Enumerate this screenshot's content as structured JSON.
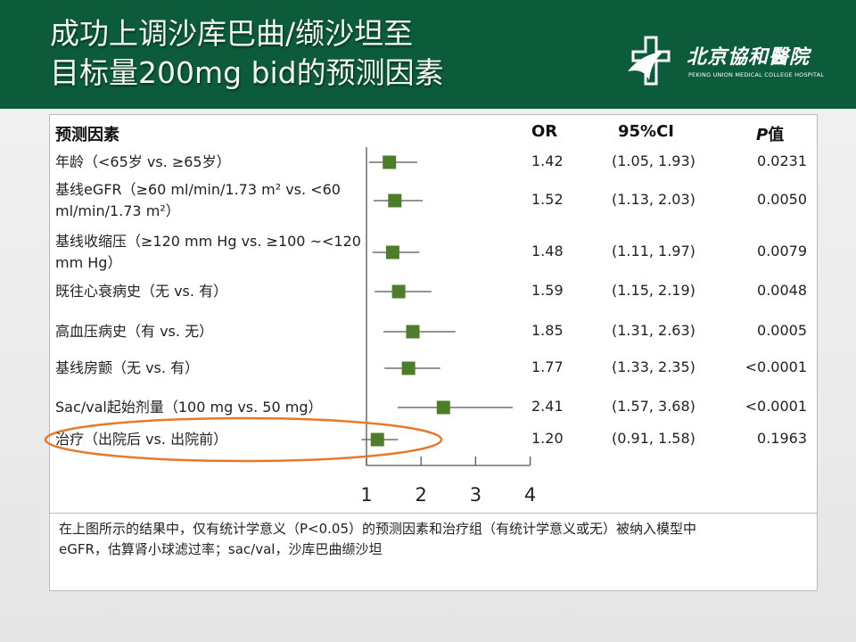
{
  "header": {
    "title_line1": "成功上调沙库巴曲/缬沙坦至",
    "title_line2": "目标量200mg bid的预测因素",
    "logo_cn": "北京協和醫院",
    "logo_en": "PEKING UNION MEDICAL COLLEGE HOSPITAL"
  },
  "chart_data": {
    "type": "forest",
    "columns": {
      "factor": "预测因素",
      "or": "OR",
      "ci": "95%CI",
      "p_italic": "P",
      "p_suffix": "值"
    },
    "rows": [
      {
        "label": "年龄（<65岁 vs. ≥65岁）",
        "or": 1.42,
        "lo": 1.05,
        "hi": 1.93,
        "or_text": "1.42",
        "ci_text": "(1.05, 1.93)",
        "p_text": "0.0231"
      },
      {
        "label": "基线eGFR（≥60 ml/min/1.73 m² vs. <60 ml/min/1.73 m²）",
        "or": 1.52,
        "lo": 1.13,
        "hi": 2.03,
        "or_text": "1.52",
        "ci_text": "(1.13, 2.03)",
        "p_text": "0.0050"
      },
      {
        "label": "基线收缩压（≥120 mm Hg vs. ≥100 ~<120 mm Hg）",
        "or": 1.48,
        "lo": 1.11,
        "hi": 1.97,
        "or_text": "1.48",
        "ci_text": "(1.11, 1.97)",
        "p_text": "0.0079"
      },
      {
        "label": "既往心衰病史（无 vs. 有）",
        "or": 1.59,
        "lo": 1.15,
        "hi": 2.19,
        "or_text": "1.59",
        "ci_text": "(1.15, 2.19)",
        "p_text": "0.0048"
      },
      {
        "label": "高血压病史（有 vs. 无）",
        "or": 1.85,
        "lo": 1.31,
        "hi": 2.63,
        "or_text": "1.85",
        "ci_text": "(1.31, 2.63)",
        "p_text": "0.0005"
      },
      {
        "label": "基线房颤（无 vs. 有）",
        "or": 1.77,
        "lo": 1.33,
        "hi": 2.35,
        "or_text": "1.77",
        "ci_text": "(1.33, 2.35)",
        "p_text": "<0.0001"
      },
      {
        "label": "Sac/val起始剂量（100 mg vs. 50 mg）",
        "or": 2.41,
        "lo": 1.57,
        "hi": 3.68,
        "or_text": "2.41",
        "ci_text": "(1.57, 3.68)",
        "p_text": "<0.0001"
      },
      {
        "label": "治疗（出院后 vs. 出院前）",
        "or": 1.2,
        "lo": 0.91,
        "hi": 1.58,
        "or_text": "1.20",
        "ci_text": "(0.91, 1.58)",
        "p_text": "0.1963",
        "highlighted": true
      }
    ],
    "xticks": [
      "1",
      "2",
      "3",
      "4"
    ],
    "xlim": [
      1,
      4
    ],
    "reference_line": 1,
    "marker_color": "#4e7d2a",
    "highlight_color": "#e8782a"
  },
  "footnote": {
    "line1": "在上图所示的结果中，仅有统计学意义（P<0.05）的预测因素和治疗组（有统计学意义或无）被纳入模型中",
    "line2": "eGFR，估算肾小球滤过率；sac/val，沙库巴曲缬沙坦"
  }
}
